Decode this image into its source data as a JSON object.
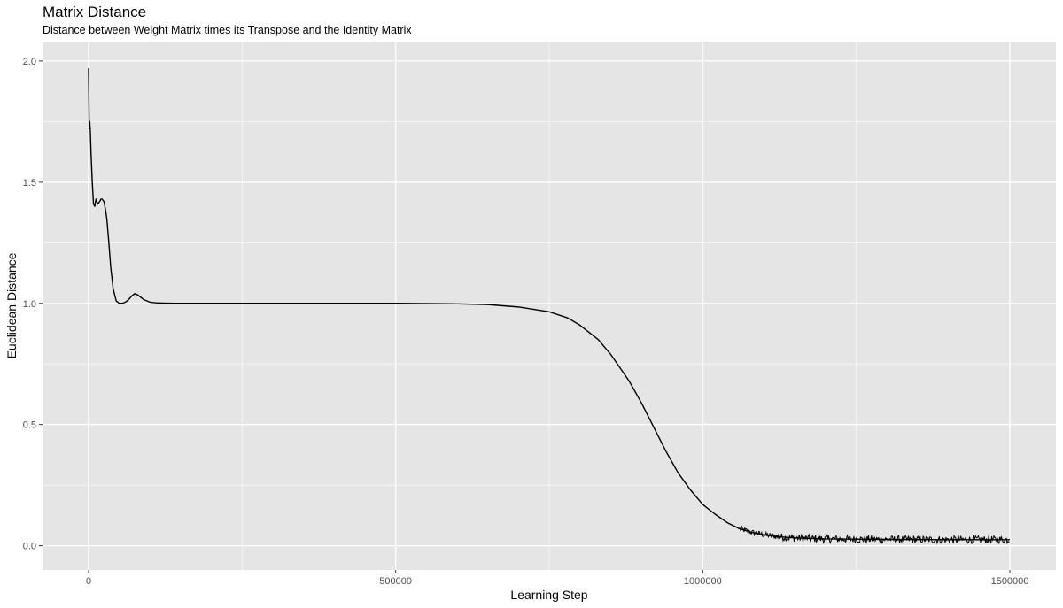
{
  "chart_data": {
    "type": "line",
    "title": "Matrix Distance",
    "subtitle": "Distance between Weight Matrix times its Transpose and the Identity Matrix",
    "xlabel": "Learning Step",
    "ylabel": "Euclidean Distance",
    "xlim": [
      -75000,
      1575000
    ],
    "ylim": [
      -0.1,
      2.08
    ],
    "x_ticks": [
      0,
      500000,
      1000000,
      1500000
    ],
    "x_tick_labels": [
      "0",
      "500000",
      "1000000",
      "1500000"
    ],
    "y_ticks": [
      0.0,
      0.5,
      1.0,
      1.5,
      2.0
    ],
    "y_tick_labels": [
      "0.0",
      "0.5",
      "1.0",
      "1.5",
      "2.0"
    ],
    "grid": true,
    "background": "#e5e5e5",
    "line_color": "#000000",
    "series": [
      {
        "x": [
          0,
          1000,
          2000,
          3000,
          4000,
          6000,
          8000,
          10000,
          12000,
          15000,
          18000,
          20000,
          22000,
          25000,
          28000,
          30000,
          33000,
          36000,
          40000,
          45000,
          50000,
          55000,
          60000,
          65000,
          70000,
          75000,
          80000,
          85000,
          90000,
          95000,
          100000,
          110000,
          120000,
          140000,
          160000,
          200000,
          300000,
          400000,
          500000,
          600000,
          650000,
          700000,
          750000,
          780000,
          800000,
          830000,
          850000,
          880000,
          900000,
          920000,
          940000,
          960000,
          980000,
          1000000,
          1020000,
          1040000,
          1060000,
          1080000,
          1100000,
          1120000,
          1150000,
          1200000,
          1300000,
          1400000,
          1500000
        ],
        "y": [
          1.97,
          1.72,
          1.75,
          1.7,
          1.62,
          1.5,
          1.41,
          1.4,
          1.43,
          1.41,
          1.42,
          1.43,
          1.43,
          1.42,
          1.38,
          1.34,
          1.25,
          1.15,
          1.06,
          1.01,
          1.0,
          1.0,
          1.005,
          1.015,
          1.03,
          1.04,
          1.035,
          1.025,
          1.015,
          1.01,
          1.005,
          1.002,
          1.001,
          1.0,
          1.0,
          1.0,
          1.0,
          1.0,
          1.0,
          0.998,
          0.995,
          0.985,
          0.965,
          0.94,
          0.91,
          0.85,
          0.79,
          0.68,
          0.59,
          0.49,
          0.39,
          0.3,
          0.23,
          0.17,
          0.13,
          0.095,
          0.07,
          0.055,
          0.045,
          0.038,
          0.032,
          0.028,
          0.026,
          0.025,
          0.025
        ]
      }
    ]
  }
}
